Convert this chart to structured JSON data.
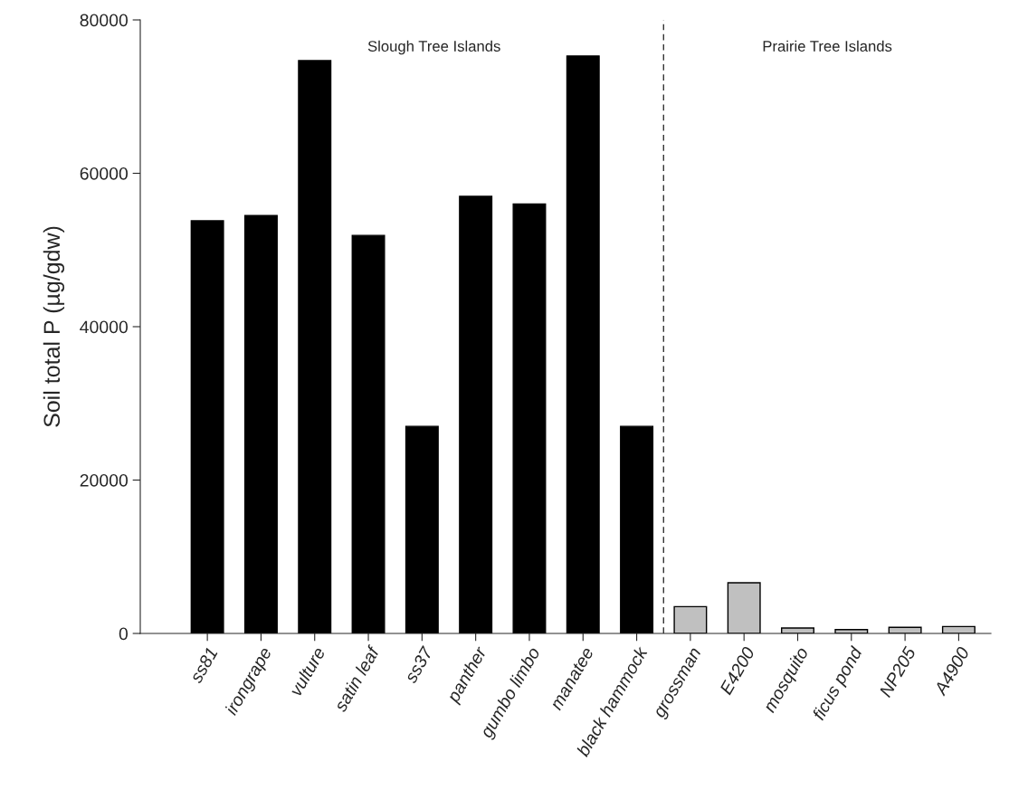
{
  "chart_data": {
    "type": "bar",
    "ylabel": "Soil total P (µg/gdw)",
    "categories": [
      "ss81",
      "irongrape",
      "vulture",
      "satin leaf",
      "ss37",
      "panther",
      "gumbo limbo",
      "manatee",
      "black hammock",
      "grossman",
      "E4200",
      "mosquito",
      "ficus pond",
      "NP205",
      "A4900"
    ],
    "values": [
      53800,
      54500,
      74700,
      51900,
      27000,
      57000,
      56000,
      75300,
      27000,
      3500,
      6600,
      700,
      500,
      800,
      900
    ],
    "colors": [
      "#000000",
      "#000000",
      "#000000",
      "#000000",
      "#000000",
      "#000000",
      "#000000",
      "#000000",
      "#000000",
      "#c0c0c0",
      "#c0c0c0",
      "#c0c0c0",
      "#c0c0c0",
      "#c0c0c0",
      "#c0c0c0"
    ],
    "ylim": [
      0,
      80000
    ],
    "yticks": [
      0,
      20000,
      40000,
      60000,
      80000
    ],
    "annotations": [
      "Slough Tree Islands",
      "Prairie Tree Islands"
    ],
    "grid": false,
    "legend": false
  }
}
